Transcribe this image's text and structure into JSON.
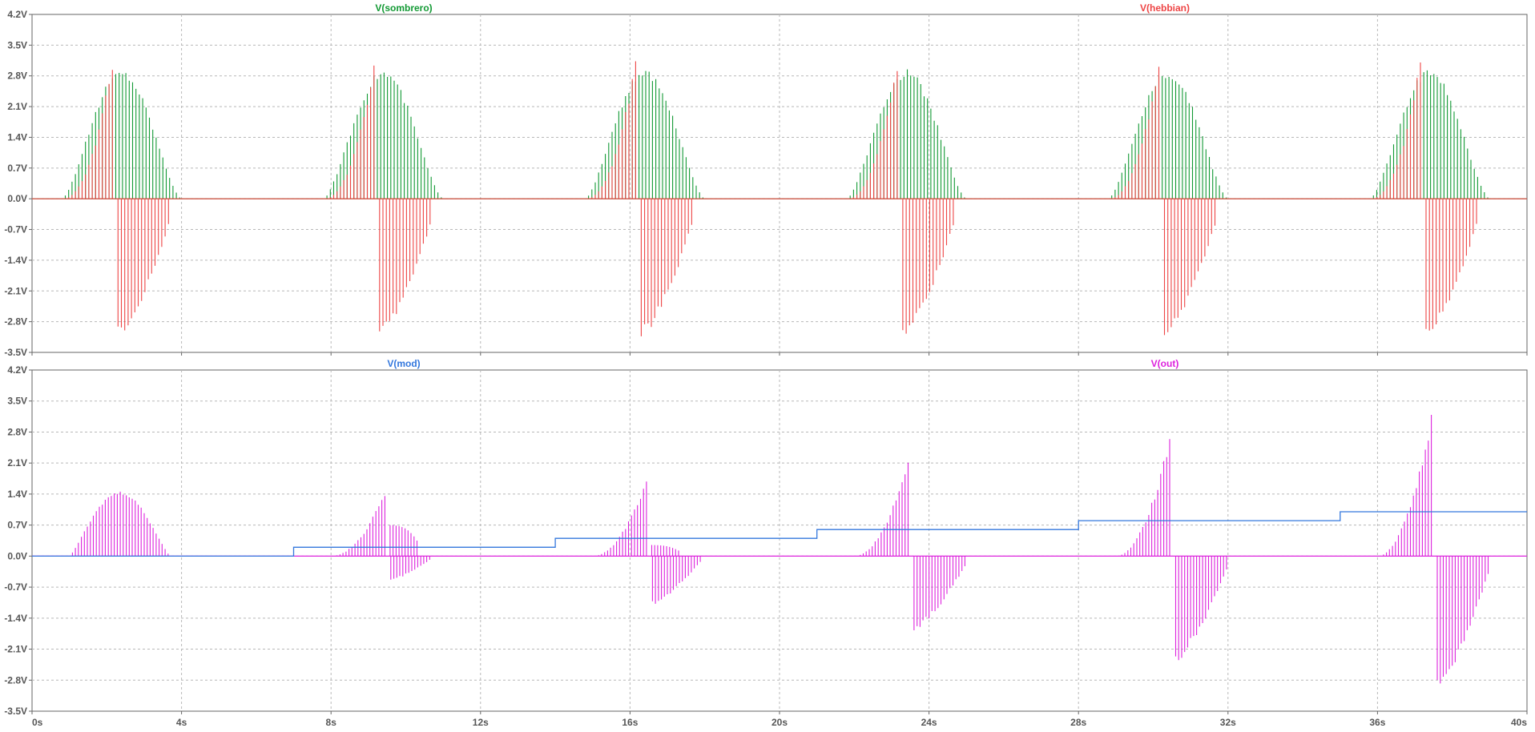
{
  "colors": {
    "sombrero": "#119933",
    "hebbian": "#ee4444",
    "mod": "#3377dd",
    "out": "#dd22dd",
    "grid": "#b8b8b8",
    "frame": "#666666",
    "tick_text": "#555555"
  },
  "chart_data": [
    {
      "type": "line",
      "grid": true,
      "x_unit": "s",
      "y_unit": "V",
      "xlim": [
        0,
        40
      ],
      "ylim": [
        -3.5,
        4.2
      ],
      "x_ticks": [
        "0s",
        "4s",
        "8s",
        "12s",
        "16s",
        "20s",
        "24s",
        "28s",
        "32s",
        "36s",
        "40s"
      ],
      "y_ticks": [
        "4.2V",
        "3.5V",
        "2.8V",
        "2.1V",
        "1.4V",
        "0.7V",
        "0.0V",
        "-0.7V",
        "-1.4V",
        "-2.1V",
        "-2.8V",
        "-3.5V"
      ],
      "pulse_period_s": 7,
      "series": [
        {
          "name": "V(sombrero)",
          "color_key": "sombrero",
          "bursts": [
            {
              "start": 0.8,
              "end": 4.0,
              "peak_time": 2.4,
              "peak": 2.95,
              "min": 0.0
            },
            {
              "start": 7.8,
              "end": 11.0,
              "peak_time": 9.4,
              "peak": 2.95,
              "min": 0.0
            },
            {
              "start": 14.8,
              "end": 18.0,
              "peak_time": 16.4,
              "peak": 2.95,
              "min": 0.0
            },
            {
              "start": 21.8,
              "end": 25.0,
              "peak_time": 23.4,
              "peak": 2.95,
              "min": 0.0
            },
            {
              "start": 28.8,
              "end": 32.0,
              "peak_time": 30.4,
              "peak": 2.95,
              "min": 0.0
            },
            {
              "start": 35.8,
              "end": 39.0,
              "peak_time": 37.4,
              "peak": 2.95,
              "min": 0.0
            }
          ]
        },
        {
          "name": "V(hebbian)",
          "color_key": "hebbian",
          "bursts": [
            {
              "start": 0.8,
              "end": 2.2,
              "peak": 3.5,
              "neg_start": 2.3,
              "neg_end": 3.7,
              "min": -3.15
            },
            {
              "start": 7.8,
              "end": 9.2,
              "peak": 3.5,
              "neg_start": 9.3,
              "neg_end": 10.7,
              "min": -3.15
            },
            {
              "start": 14.8,
              "end": 16.2,
              "peak": 3.5,
              "neg_start": 16.3,
              "neg_end": 17.7,
              "min": -3.15
            },
            {
              "start": 21.8,
              "end": 23.2,
              "peak": 3.5,
              "neg_start": 23.3,
              "neg_end": 24.7,
              "min": -3.15
            },
            {
              "start": 28.8,
              "end": 30.2,
              "peak": 3.5,
              "neg_start": 30.3,
              "neg_end": 31.7,
              "min": -3.15
            },
            {
              "start": 35.8,
              "end": 37.2,
              "peak": 3.5,
              "neg_start": 37.3,
              "neg_end": 38.7,
              "min": -3.15
            }
          ]
        }
      ]
    },
    {
      "type": "line",
      "grid": true,
      "x_unit": "s",
      "y_unit": "V",
      "xlim": [
        0,
        40
      ],
      "ylim": [
        -3.5,
        4.2
      ],
      "x_ticks": [
        "0s",
        "4s",
        "8s",
        "12s",
        "16s",
        "20s",
        "24s",
        "28s",
        "32s",
        "36s",
        "40s"
      ],
      "y_ticks": [
        "4.2V",
        "3.5V",
        "2.8V",
        "2.1V",
        "1.4V",
        "0.7V",
        "0.0V",
        "-0.7V",
        "-1.4V",
        "-2.1V",
        "-2.8V",
        "-3.5V"
      ],
      "series": [
        {
          "name": "V(mod)",
          "color_key": "mod",
          "steps": [
            {
              "x": 0,
              "y": 0.0
            },
            {
              "x": 7,
              "y": 0.2
            },
            {
              "x": 14,
              "y": 0.4
            },
            {
              "x": 21,
              "y": 0.6
            },
            {
              "x": 28,
              "y": 0.8
            },
            {
              "x": 35,
              "y": 1.0
            }
          ]
        },
        {
          "name": "V(out)",
          "color_key": "out",
          "bursts": [
            {
              "start": 1.0,
              "end": 3.7,
              "peak": 1.47,
              "neg_start": 3.7,
              "neg_end": 3.7,
              "min": 0.0
            },
            {
              "start": 8.0,
              "end": 9.5,
              "peak": 1.6,
              "plateau_end": 10.3,
              "plateau": 0.7,
              "neg_start": 9.6,
              "neg_end": 10.7,
              "min": -0.55
            },
            {
              "start": 15.0,
              "end": 16.5,
              "peak": 1.95,
              "plateau_end": 17.3,
              "plateau": 0.25,
              "neg_start": 16.6,
              "neg_end": 17.9,
              "min": -1.1
            },
            {
              "start": 22.0,
              "end": 23.5,
              "peak": 2.4,
              "neg_start": 23.6,
              "neg_end": 25.0,
              "min": -1.7
            },
            {
              "start": 29.0,
              "end": 30.5,
              "peak": 2.95,
              "neg_start": 30.6,
              "neg_end": 32.0,
              "min": -2.4
            },
            {
              "start": 36.0,
              "end": 37.5,
              "peak": 3.5,
              "neg_start": 37.6,
              "neg_end": 39.0,
              "min": -3.1
            }
          ]
        }
      ]
    }
  ]
}
